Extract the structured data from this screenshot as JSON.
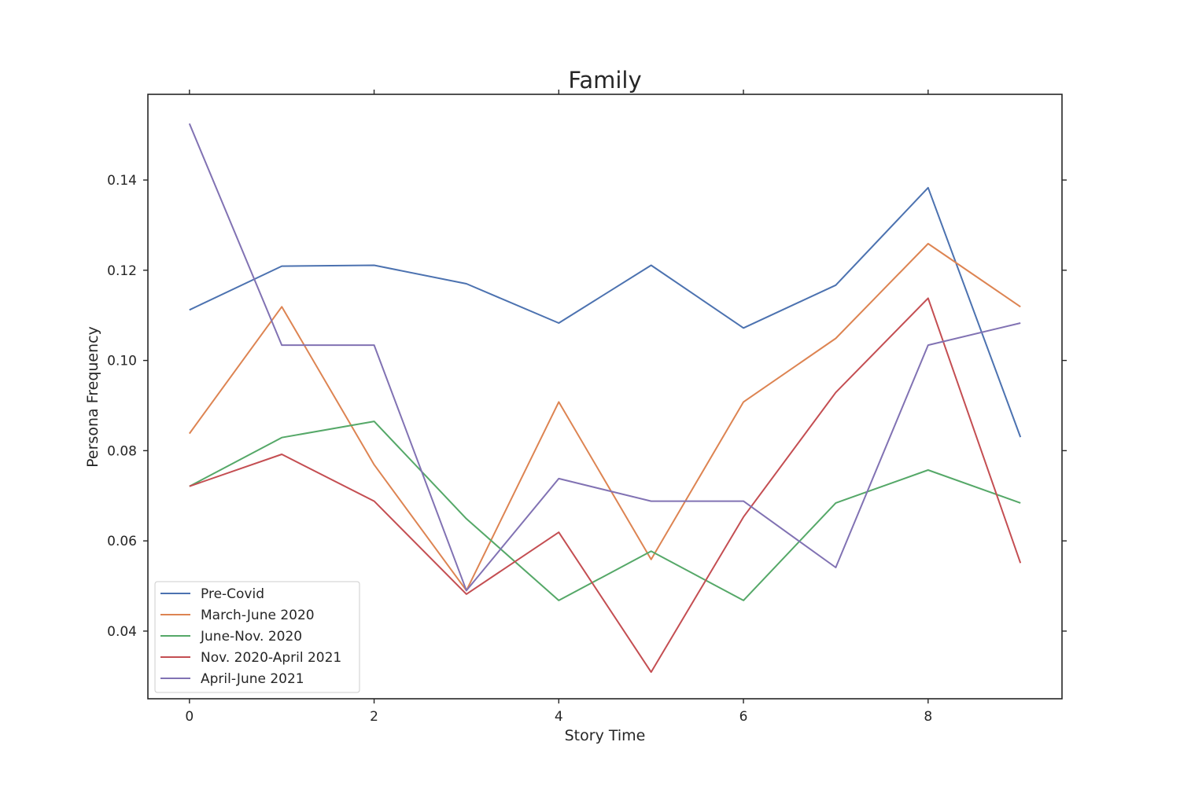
{
  "chart_data": {
    "type": "line",
    "title": "Family",
    "xlabel": "Story Time",
    "ylabel": "Persona Frequency",
    "x": [
      0,
      1,
      2,
      3,
      4,
      5,
      6,
      7,
      8,
      9
    ],
    "xlim": [
      -0.45,
      9.45
    ],
    "ylim": [
      0.025,
      0.159
    ],
    "xticks": [
      0,
      2,
      4,
      6,
      8
    ],
    "yticks": [
      0.04,
      0.06,
      0.08,
      0.1,
      0.12,
      0.14
    ],
    "ytick_labels": [
      "0.04",
      "0.06",
      "0.08",
      "0.10",
      "0.12",
      "0.14"
    ],
    "grid": false,
    "legend_position": "lower-left",
    "series": [
      {
        "name": "Pre-Covid",
        "color": "#4c72b0",
        "values": [
          0.1112,
          0.1209,
          0.1211,
          0.117,
          0.1083,
          0.1211,
          0.1072,
          0.1167,
          0.1383,
          0.083
        ]
      },
      {
        "name": "March-June 2020",
        "color": "#dd8452",
        "values": [
          0.0838,
          0.1119,
          0.0769,
          0.049,
          0.0908,
          0.0559,
          0.0908,
          0.1049,
          0.1259,
          0.1119
        ]
      },
      {
        "name": "June-Nov. 2020",
        "color": "#55a868",
        "values": [
          0.0721,
          0.0829,
          0.0865,
          0.0649,
          0.0468,
          0.0577,
          0.0468,
          0.0684,
          0.0757,
          0.0684
        ]
      },
      {
        "name": "Nov. 2020-April 2021",
        "color": "#c44e52",
        "values": [
          0.0721,
          0.0792,
          0.0688,
          0.0482,
          0.0619,
          0.0309,
          0.0653,
          0.0929,
          0.1138,
          0.0551
        ]
      },
      {
        "name": "April-June 2021",
        "color": "#8172b3",
        "values": [
          0.1525,
          0.1034,
          0.1034,
          0.049,
          0.0738,
          0.0688,
          0.0688,
          0.0541,
          0.1034,
          0.1083
        ]
      }
    ]
  }
}
